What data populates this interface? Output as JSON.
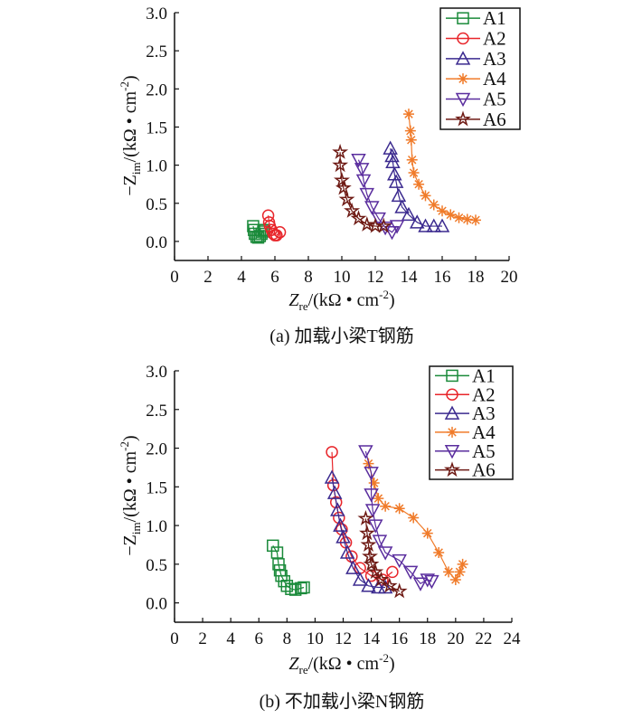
{
  "chart_data": [
    {
      "type": "scatter",
      "caption": "(a) 加载小梁T钢筋",
      "xlabel": {
        "main": "Z",
        "sub": "re",
        "rest": "/(kΩ • cm",
        "sup": "-2",
        "close": ")"
      },
      "ylabel": {
        "main": "−Z",
        "sub": "im",
        "rest": "/(kΩ • cm",
        "sup": "-2",
        "close": ")"
      },
      "xlim": [
        0,
        20
      ],
      "ylim": [
        -0.25,
        3.0
      ],
      "xticks": [
        0,
        2,
        4,
        6,
        8,
        10,
        12,
        14,
        16,
        18,
        20
      ],
      "yticks": [
        "0.0",
        "0.5",
        "1.0",
        "1.5",
        "2.0",
        "2.5",
        "3.0"
      ],
      "legend_position": "top-right",
      "series": [
        {
          "name": "A1",
          "color": "#1a8a3a",
          "marker": "square",
          "points": [
            [
              4.7,
              0.2
            ],
            [
              4.75,
              0.15
            ],
            [
              4.8,
              0.1
            ],
            [
              4.9,
              0.06
            ],
            [
              5.0,
              0.05
            ],
            [
              5.1,
              0.07
            ],
            [
              5.2,
              0.1
            ],
            [
              5.3,
              0.13
            ],
            [
              5.35,
              0.15
            ]
          ]
        },
        {
          "name": "A2",
          "color": "#e8262b",
          "marker": "circle",
          "points": [
            [
              5.6,
              0.34
            ],
            [
              5.65,
              0.25
            ],
            [
              5.7,
              0.2
            ],
            [
              5.8,
              0.15
            ],
            [
              5.9,
              0.1
            ],
            [
              6.0,
              0.08
            ],
            [
              6.1,
              0.08
            ],
            [
              6.3,
              0.12
            ]
          ]
        },
        {
          "name": "A3",
          "color": "#3b2a8f",
          "marker": "triangle-up",
          "points": [
            [
              12.9,
              1.22
            ],
            [
              13.0,
              1.12
            ],
            [
              13.05,
              1.04
            ],
            [
              13.15,
              0.88
            ],
            [
              13.25,
              0.78
            ],
            [
              13.4,
              0.6
            ],
            [
              13.6,
              0.45
            ],
            [
              14.0,
              0.35
            ],
            [
              14.5,
              0.25
            ],
            [
              15.0,
              0.2
            ],
            [
              15.5,
              0.2
            ],
            [
              16.0,
              0.2
            ]
          ]
        },
        {
          "name": "A4",
          "color": "#f07b2a",
          "marker": "asterisk",
          "points": [
            [
              14.0,
              1.67
            ],
            [
              14.1,
              1.45
            ],
            [
              14.15,
              1.33
            ],
            [
              14.2,
              1.07
            ],
            [
              14.3,
              0.9
            ],
            [
              14.6,
              0.75
            ],
            [
              15.0,
              0.6
            ],
            [
              15.5,
              0.48
            ],
            [
              16.0,
              0.4
            ],
            [
              16.5,
              0.35
            ],
            [
              17.0,
              0.31
            ],
            [
              17.5,
              0.29
            ],
            [
              18.0,
              0.28
            ]
          ]
        },
        {
          "name": "A5",
          "color": "#5a2d9e",
          "marker": "triangle-down",
          "points": [
            [
              11.0,
              1.07
            ],
            [
              11.2,
              0.95
            ],
            [
              11.3,
              0.8
            ],
            [
              11.5,
              0.62
            ],
            [
              11.8,
              0.45
            ],
            [
              12.2,
              0.3
            ],
            [
              12.6,
              0.18
            ],
            [
              13.0,
              0.12
            ],
            [
              13.3,
              0.2
            ]
          ]
        },
        {
          "name": "A6",
          "color": "#6e1a14",
          "marker": "star",
          "points": [
            [
              9.9,
              1.17
            ],
            [
              9.9,
              1.0
            ],
            [
              10.0,
              0.8
            ],
            [
              10.1,
              0.7
            ],
            [
              10.3,
              0.55
            ],
            [
              10.6,
              0.4
            ],
            [
              11.0,
              0.3
            ],
            [
              11.5,
              0.22
            ],
            [
              12.0,
              0.2
            ],
            [
              12.5,
              0.2
            ]
          ]
        }
      ]
    },
    {
      "type": "scatter",
      "caption": "(b) 不加载小梁N钢筋",
      "xlabel": {
        "main": "Z",
        "sub": "re",
        "rest": "/(kΩ • cm",
        "sup": "-2",
        "close": ")"
      },
      "ylabel": {
        "main": "−Z",
        "sub": "im",
        "rest": "/(kΩ • cm",
        "sup": "-2",
        "close": ")"
      },
      "xlim": [
        0,
        24
      ],
      "ylim": [
        -0.25,
        3.0
      ],
      "xticks": [
        0,
        2,
        4,
        6,
        8,
        10,
        12,
        14,
        16,
        18,
        20,
        22,
        24
      ],
      "yticks": [
        "0.0",
        "0.5",
        "1.0",
        "1.5",
        "2.0",
        "2.5",
        "3.0"
      ],
      "legend_position": "top-right",
      "series": [
        {
          "name": "A1",
          "color": "#1a8a3a",
          "marker": "square",
          "points": [
            [
              7.0,
              0.74
            ],
            [
              7.3,
              0.65
            ],
            [
              7.4,
              0.5
            ],
            [
              7.5,
              0.42
            ],
            [
              7.6,
              0.35
            ],
            [
              7.8,
              0.28
            ],
            [
              8.0,
              0.22
            ],
            [
              8.3,
              0.18
            ],
            [
              8.6,
              0.17
            ],
            [
              9.0,
              0.19
            ],
            [
              9.2,
              0.2
            ]
          ]
        },
        {
          "name": "A2",
          "color": "#e8262b",
          "marker": "circle",
          "points": [
            [
              11.2,
              1.95
            ],
            [
              11.3,
              1.52
            ],
            [
              11.5,
              1.3
            ],
            [
              11.7,
              1.1
            ],
            [
              11.9,
              0.95
            ],
            [
              12.2,
              0.78
            ],
            [
              12.6,
              0.6
            ],
            [
              13.2,
              0.45
            ],
            [
              14.0,
              0.35
            ],
            [
              14.8,
              0.3
            ],
            [
              15.5,
              0.4
            ]
          ]
        },
        {
          "name": "A3",
          "color": "#3b2a8f",
          "marker": "triangle-up",
          "points": [
            [
              11.2,
              1.62
            ],
            [
              11.4,
              1.42
            ],
            [
              11.6,
              1.2
            ],
            [
              11.8,
              1.0
            ],
            [
              12.0,
              0.85
            ],
            [
              12.3,
              0.65
            ],
            [
              12.7,
              0.45
            ],
            [
              13.2,
              0.3
            ],
            [
              13.8,
              0.22
            ],
            [
              14.5,
              0.2
            ],
            [
              15.0,
              0.2
            ]
          ]
        },
        {
          "name": "A4",
          "color": "#f07b2a",
          "marker": "asterisk",
          "points": [
            [
              13.8,
              1.8
            ],
            [
              14.2,
              1.55
            ],
            [
              14.5,
              1.35
            ],
            [
              15.0,
              1.25
            ],
            [
              16.0,
              1.22
            ],
            [
              17.0,
              1.1
            ],
            [
              18.0,
              0.9
            ],
            [
              18.8,
              0.65
            ],
            [
              19.5,
              0.4
            ],
            [
              20.0,
              0.3
            ],
            [
              20.3,
              0.4
            ],
            [
              20.5,
              0.5
            ]
          ]
        },
        {
          "name": "A5",
          "color": "#5a2d9e",
          "marker": "triangle-down",
          "points": [
            [
              13.6,
              1.96
            ],
            [
              14.0,
              1.68
            ],
            [
              14.0,
              1.4
            ],
            [
              14.1,
              1.2
            ],
            [
              14.3,
              1.0
            ],
            [
              14.6,
              0.8
            ],
            [
              15.0,
              0.65
            ],
            [
              16.0,
              0.55
            ],
            [
              16.8,
              0.4
            ],
            [
              17.5,
              0.25
            ],
            [
              18.0,
              0.3
            ],
            [
              18.3,
              0.28
            ]
          ]
        },
        {
          "name": "A6",
          "color": "#6e1a14",
          "marker": "star",
          "points": [
            [
              13.6,
              1.09
            ],
            [
              13.7,
              0.9
            ],
            [
              13.8,
              0.75
            ],
            [
              13.9,
              0.6
            ],
            [
              14.0,
              0.5
            ],
            [
              14.3,
              0.4
            ],
            [
              14.7,
              0.3
            ],
            [
              15.3,
              0.22
            ],
            [
              16.0,
              0.15
            ]
          ]
        }
      ]
    }
  ]
}
